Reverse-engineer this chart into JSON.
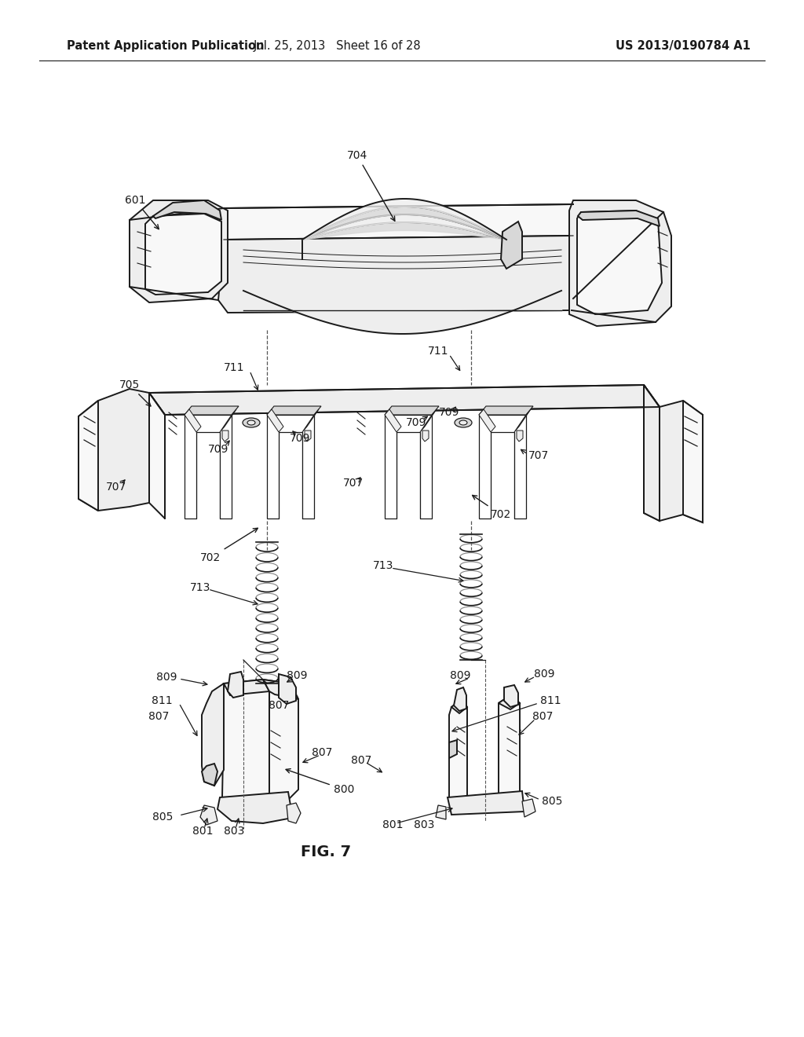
{
  "background_color": "#ffffff",
  "header_left": "Patent Application Publication",
  "header_center": "Jul. 25, 2013   Sheet 16 of 28",
  "header_right": "US 2013/0190784 A1",
  "figure_label": "FIG. 7",
  "header_fontsize": 10.5,
  "figure_label_fontsize": 14,
  "line_color": "#1a1a1a",
  "fill_light": "#f8f8f8",
  "fill_medium": "#eeeeee",
  "fill_dark": "#d8d8d8",
  "fill_white": "#ffffff",
  "label_fontsize": 10
}
